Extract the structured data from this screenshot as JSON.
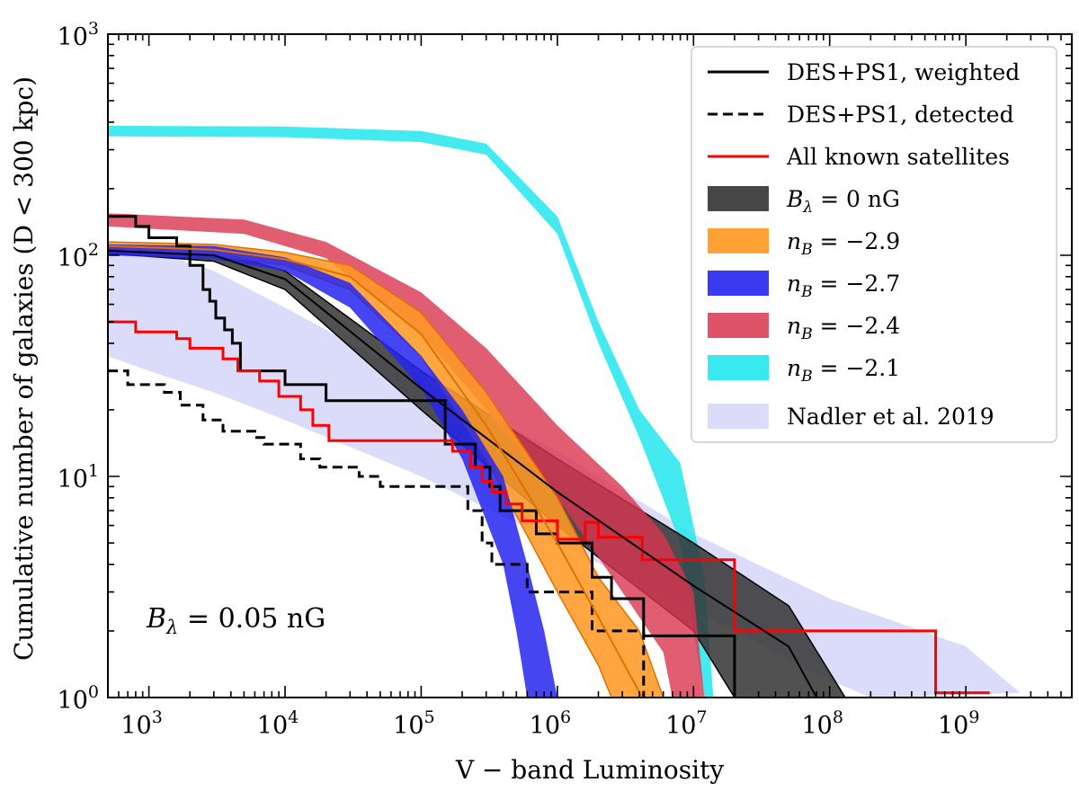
{
  "chart_data": {
    "type": "line",
    "title": "",
    "xlabel": "V − band Luminosity",
    "ylabel": "Cumulative number of galaxies (D < 300 kpc)",
    "xscale": "log",
    "yscale": "log",
    "xlim": [
      500,
      6000000000
    ],
    "ylim": [
      1,
      1000
    ],
    "x_ticks": [
      {
        "value": 1000,
        "base": "10",
        "exp": "3"
      },
      {
        "value": 10000,
        "base": "10",
        "exp": "4"
      },
      {
        "value": 100000,
        "base": "10",
        "exp": "5"
      },
      {
        "value": 1000000,
        "base": "10",
        "exp": "6"
      },
      {
        "value": 10000000,
        "base": "10",
        "exp": "7"
      },
      {
        "value": 100000000,
        "base": "10",
        "exp": "8"
      },
      {
        "value": 1000000000,
        "base": "10",
        "exp": "9"
      }
    ],
    "y_ticks": [
      {
        "value": 1,
        "base": "10",
        "exp": "0"
      },
      {
        "value": 10,
        "base": "10",
        "exp": "1"
      },
      {
        "value": 100,
        "base": "10",
        "exp": "2"
      },
      {
        "value": 1000,
        "base": "10",
        "exp": "3"
      }
    ],
    "legend_position": "top-right",
    "annotation": {
      "symbol": "B",
      "subscript": "λ",
      "text": " = 0.05 nG",
      "position": "lower-left"
    },
    "bands": [
      {
        "name": "Nadler et al. 2019",
        "legend": "Nadler et al. 2019",
        "color": "#cfcff8",
        "opacity": 0.75,
        "edge": "none",
        "upper": [
          [
            500,
            110
          ],
          [
            1000,
            105
          ],
          [
            3000,
            85
          ],
          [
            10000,
            58
          ],
          [
            100000,
            27
          ],
          [
            1000000,
            13
          ],
          [
            10000000,
            5.5
          ],
          [
            100000000,
            2.8
          ],
          [
            1000000000,
            1.7
          ],
          [
            2500000000,
            1.05
          ]
        ],
        "lower": [
          [
            500,
            35
          ],
          [
            1000,
            30
          ],
          [
            3000,
            24
          ],
          [
            10000,
            18
          ],
          [
            100000,
            10
          ],
          [
            1000000,
            5
          ],
          [
            10000000,
            2.5
          ],
          [
            100000000,
            1.2
          ],
          [
            200000000,
            1.0
          ]
        ]
      },
      {
        "name": "nB=-2.1",
        "legend_symbol": "n",
        "legend_sub": "B",
        "legend_rest": " = −2.1",
        "color": "#22e8ee",
        "opacity": 0.85,
        "edge": "none",
        "upper": [
          [
            500,
            385
          ],
          [
            10000,
            382
          ],
          [
            100000,
            365
          ],
          [
            300000,
            320
          ],
          [
            1000000,
            150
          ],
          [
            2000000,
            50
          ],
          [
            4000000,
            20
          ],
          [
            8000000,
            11.5
          ],
          [
            12000000,
            3.5
          ],
          [
            14000000,
            1.0
          ]
        ],
        "lower": [
          [
            500,
            345
          ],
          [
            10000,
            342
          ],
          [
            100000,
            325
          ],
          [
            300000,
            285
          ],
          [
            1000000,
            125
          ],
          [
            2000000,
            40
          ],
          [
            4000000,
            15
          ],
          [
            8000000,
            5
          ],
          [
            10000000,
            2
          ],
          [
            12000000,
            1.0
          ]
        ]
      },
      {
        "name": "Blambda=0nG",
        "legend_symbol": "B",
        "legend_sub": "λ",
        "legend_rest": " = 0 nG",
        "color": "#333333",
        "opacity": 0.85,
        "edge": "#000000",
        "upper": [
          [
            500,
            110
          ],
          [
            3000,
            105
          ],
          [
            10000,
            85
          ],
          [
            100000,
            30
          ],
          [
            1000000,
            12
          ],
          [
            10000000,
            5
          ],
          [
            50000000,
            2.6
          ],
          [
            130000000,
            1.0
          ]
        ],
        "lower": [
          [
            500,
            102
          ],
          [
            3000,
            94
          ],
          [
            10000,
            70
          ],
          [
            100000,
            20
          ],
          [
            1000000,
            6
          ],
          [
            10000000,
            2
          ],
          [
            20000000,
            1.0
          ]
        ]
      },
      {
        "name": "nB=-2.4",
        "legend_symbol": "n",
        "legend_sub": "B",
        "legend_rest": " = −2.4",
        "color": "#d9354f",
        "opacity": 0.8,
        "edge": "none",
        "upper": [
          [
            500,
            155
          ],
          [
            5000,
            145
          ],
          [
            20000,
            115
          ],
          [
            100000,
            68
          ],
          [
            300000,
            38
          ],
          [
            1000000,
            17
          ],
          [
            3000000,
            9
          ],
          [
            6000000,
            5.5
          ],
          [
            10000000,
            3
          ],
          [
            12000000,
            1.0
          ]
        ],
        "lower": [
          [
            500,
            135
          ],
          [
            5000,
            125
          ],
          [
            20000,
            97
          ],
          [
            100000,
            44
          ],
          [
            300000,
            20
          ],
          [
            1000000,
            8
          ],
          [
            3000000,
            3
          ],
          [
            6000000,
            1.6
          ],
          [
            7000000,
            1.0
          ]
        ]
      },
      {
        "name": "nB=-2.9",
        "legend_symbol": "n",
        "legend_sub": "B",
        "legend_rest": " = −2.9",
        "color": "#ff9a26",
        "opacity": 0.88,
        "edge": "#e07000",
        "upper": [
          [
            500,
            115
          ],
          [
            3000,
            112
          ],
          [
            10000,
            103
          ],
          [
            30000,
            90
          ],
          [
            100000,
            55
          ],
          [
            300000,
            24
          ],
          [
            1000000,
            8
          ],
          [
            2000000,
            3.5
          ],
          [
            4000000,
            2
          ],
          [
            6000000,
            1.0
          ]
        ],
        "lower": [
          [
            500,
            105
          ],
          [
            3000,
            100
          ],
          [
            10000,
            90
          ],
          [
            30000,
            70
          ],
          [
            100000,
            35
          ],
          [
            300000,
            12
          ],
          [
            1000000,
            3
          ],
          [
            2000000,
            1.4
          ],
          [
            2500000,
            1.0
          ]
        ]
      },
      {
        "name": "nB=-2.7",
        "legend_symbol": "n",
        "legend_sub": "B",
        "legend_rest": " = −2.7",
        "color": "#2525f0",
        "opacity": 0.85,
        "edge": "none",
        "upper": [
          [
            500,
            112
          ],
          [
            3000,
            110
          ],
          [
            10000,
            98
          ],
          [
            30000,
            75
          ],
          [
            100000,
            35
          ],
          [
            200000,
            20
          ],
          [
            400000,
            10
          ],
          [
            600000,
            4
          ],
          [
            800000,
            2
          ],
          [
            1000000,
            1.0
          ]
        ],
        "lower": [
          [
            500,
            100
          ],
          [
            3000,
            96
          ],
          [
            10000,
            85
          ],
          [
            30000,
            58
          ],
          [
            100000,
            25
          ],
          [
            200000,
            12
          ],
          [
            400000,
            4
          ],
          [
            500000,
            2
          ],
          [
            600000,
            1.0
          ]
        ]
      }
    ],
    "lines": [
      {
        "name": "DES+PS1, weighted",
        "legend": "DES+PS1, weighted",
        "color": "#000000",
        "style": "solid",
        "width": 3,
        "step": true,
        "points": [
          [
            500,
            150
          ],
          [
            800,
            150
          ],
          [
            800,
            135
          ],
          [
            1000,
            135
          ],
          [
            1000,
            120
          ],
          [
            1600,
            120
          ],
          [
            1600,
            110
          ],
          [
            2000,
            110
          ],
          [
            2000,
            90
          ],
          [
            2500,
            90
          ],
          [
            2500,
            70
          ],
          [
            2800,
            70
          ],
          [
            2800,
            62
          ],
          [
            3100,
            62
          ],
          [
            3100,
            52
          ],
          [
            3600,
            52
          ],
          [
            3600,
            46
          ],
          [
            4100,
            46
          ],
          [
            4100,
            40
          ],
          [
            4700,
            40
          ],
          [
            4700,
            30
          ],
          [
            10000,
            30
          ],
          [
            10000,
            26
          ],
          [
            20000,
            26
          ],
          [
            20000,
            22
          ],
          [
            150000,
            22
          ],
          [
            150000,
            14
          ],
          [
            250000,
            14
          ],
          [
            250000,
            11
          ],
          [
            320000,
            11
          ],
          [
            320000,
            9
          ],
          [
            380000,
            9
          ],
          [
            380000,
            7
          ],
          [
            700000,
            7
          ],
          [
            700000,
            5.5
          ],
          [
            1000000,
            5.5
          ],
          [
            1000000,
            5
          ],
          [
            1800000,
            5
          ],
          [
            1800000,
            3.5
          ],
          [
            2500000,
            3.5
          ],
          [
            2500000,
            2.8
          ],
          [
            4300000,
            2.8
          ],
          [
            4300000,
            1.9
          ],
          [
            20000000,
            1.9
          ],
          [
            20000000,
            1.0
          ]
        ]
      },
      {
        "name": "DES+PS1, detected",
        "legend": "DES+PS1, detected",
        "color": "#000000",
        "style": "dashed",
        "width": 3,
        "step": true,
        "points": [
          [
            500,
            30
          ],
          [
            700,
            30
          ],
          [
            700,
            26
          ],
          [
            1300,
            26
          ],
          [
            1300,
            24
          ],
          [
            1700,
            24
          ],
          [
            1700,
            21
          ],
          [
            2500,
            21
          ],
          [
            2500,
            18
          ],
          [
            3500,
            18
          ],
          [
            3500,
            16
          ],
          [
            6000,
            16
          ],
          [
            6000,
            15
          ],
          [
            7000,
            15
          ],
          [
            7000,
            14
          ],
          [
            13000,
            14
          ],
          [
            13000,
            12
          ],
          [
            18000,
            12
          ],
          [
            18000,
            11
          ],
          [
            35000,
            11
          ],
          [
            35000,
            10
          ],
          [
            50000,
            10
          ],
          [
            50000,
            9
          ],
          [
            220000,
            9
          ],
          [
            220000,
            7
          ],
          [
            280000,
            7
          ],
          [
            280000,
            5
          ],
          [
            330000,
            5
          ],
          [
            330000,
            4
          ],
          [
            600000,
            4
          ],
          [
            600000,
            3
          ],
          [
            1800000,
            3
          ],
          [
            1800000,
            2
          ],
          [
            4300000,
            2
          ],
          [
            4300000,
            1.0
          ]
        ]
      },
      {
        "name": "All known satellites",
        "legend": "All known satellites",
        "color": "#ff0000",
        "style": "solid",
        "width": 3,
        "step": true,
        "points": [
          [
            500,
            50
          ],
          [
            800,
            50
          ],
          [
            800,
            45
          ],
          [
            1600,
            45
          ],
          [
            1600,
            42
          ],
          [
            2000,
            42
          ],
          [
            2000,
            38
          ],
          [
            3500,
            38
          ],
          [
            3500,
            34
          ],
          [
            4500,
            34
          ],
          [
            4500,
            30
          ],
          [
            6500,
            30
          ],
          [
            6500,
            27
          ],
          [
            9000,
            27
          ],
          [
            9000,
            23
          ],
          [
            13000,
            23
          ],
          [
            13000,
            20
          ],
          [
            16000,
            20
          ],
          [
            16000,
            17
          ],
          [
            21000,
            17
          ],
          [
            21000,
            14.5
          ],
          [
            170000,
            14.5
          ],
          [
            170000,
            13
          ],
          [
            230000,
            13
          ],
          [
            230000,
            11
          ],
          [
            280000,
            11
          ],
          [
            280000,
            9.5
          ],
          [
            330000,
            9.5
          ],
          [
            330000,
            8.5
          ],
          [
            420000,
            8.5
          ],
          [
            420000,
            7.5
          ],
          [
            550000,
            7.5
          ],
          [
            550000,
            6.3
          ],
          [
            1000000,
            6.3
          ],
          [
            1000000,
            5.2
          ],
          [
            1600000,
            5.2
          ],
          [
            1600000,
            6.2
          ],
          [
            2000000,
            6.2
          ],
          [
            2000000,
            5.3
          ],
          [
            4200000,
            5.3
          ],
          [
            4200000,
            4.2
          ],
          [
            20000000,
            4.2
          ],
          [
            20000000,
            2.0
          ],
          [
            600000000,
            2.0
          ],
          [
            600000000,
            1.05
          ],
          [
            1500000000,
            1.05
          ]
        ]
      },
      {
        "name": "Blambda=0nG median",
        "color": "#000000",
        "style": "solid",
        "width": 2,
        "step": false,
        "points": [
          [
            500,
            105
          ],
          [
            3000,
            100
          ],
          [
            10000,
            78
          ],
          [
            100000,
            25
          ],
          [
            1000000,
            8.5
          ],
          [
            10000000,
            3.2
          ],
          [
            50000000,
            1.7
          ],
          [
            80000000,
            1.0
          ]
        ]
      },
      {
        "name": "nB=-2.9 median",
        "color": "#e07000",
        "style": "solid",
        "width": 2,
        "step": false,
        "points": [
          [
            500,
            110
          ],
          [
            3000,
            106
          ],
          [
            10000,
            96
          ],
          [
            30000,
            80
          ],
          [
            100000,
            44
          ],
          [
            300000,
            17
          ],
          [
            1000000,
            5
          ],
          [
            2500000,
            1.8
          ],
          [
            4200000,
            1.0
          ]
        ]
      }
    ]
  }
}
